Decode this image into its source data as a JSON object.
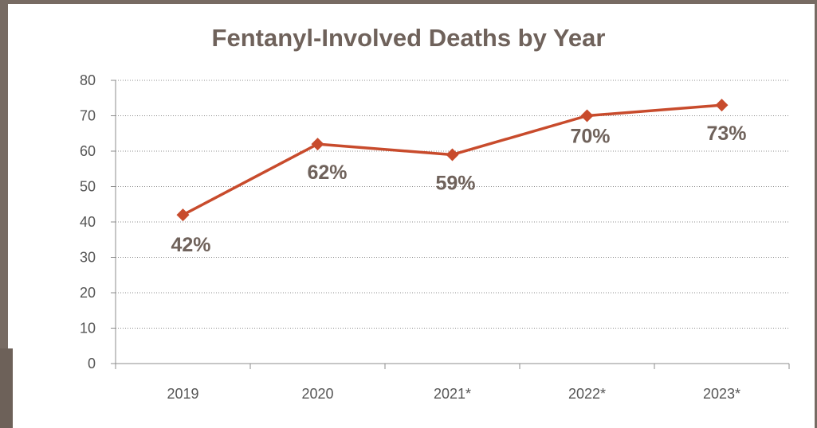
{
  "chart_data": {
    "type": "line",
    "title": "Fentanyl-Involved Deaths by Year",
    "categories": [
      "2019",
      "2020",
      "2021*",
      "2022*",
      "2023*"
    ],
    "series": [
      {
        "values": [
          42,
          62,
          59,
          70,
          73
        ],
        "color": "#c84b2c"
      }
    ],
    "data_labels": [
      "42%",
      "62%",
      "59%",
      "70%",
      "73%"
    ],
    "ylim": [
      0,
      80
    ],
    "yticks": [
      "0",
      "10",
      "20",
      "30",
      "40",
      "50",
      "60",
      "70",
      "80"
    ],
    "grid": true,
    "xlabel": "",
    "ylabel": ""
  }
}
